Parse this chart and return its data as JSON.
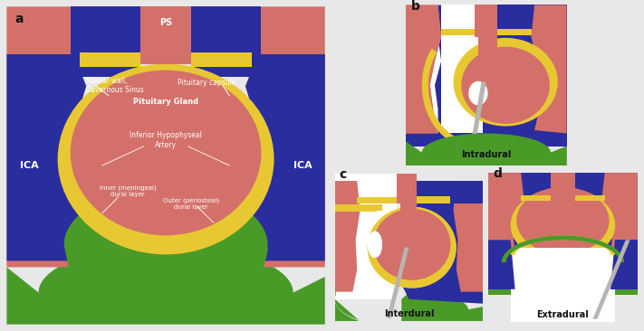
{
  "bg_color": "#e8e8e8",
  "red_color": "#d4706a",
  "blue_color": "#2a2d9e",
  "yellow_color": "#e8c832",
  "green_color": "#4a9a28",
  "white_color": "#ffffff",
  "gray_color": "#b8b4b0",
  "light_gray": "#d0ccc8",
  "text_white": "#ffffff",
  "text_black": "#111111",
  "label_a": "a",
  "label_b": "b",
  "label_c": "c",
  "label_d": "d",
  "label_intradural": "Intradural",
  "label_interdural": "Interdural",
  "label_extradural": "Extradural",
  "label_ICA_left": "ICA",
  "label_ICA_right": "ICA",
  "label_PS": "PS",
  "label_medial_wall": "Medial wall,\nCavernous Sinus",
  "label_pit_capsule": "Pituitary capsule",
  "label_pit_gland": "Pituitary Gland",
  "label_IHA": "Inferior Hypophyseal\nArtery",
  "label_inner_dural": "Inner (meningeal)\ndural layer",
  "label_outer_dural": "Outer (periosteal)\ndural layer"
}
